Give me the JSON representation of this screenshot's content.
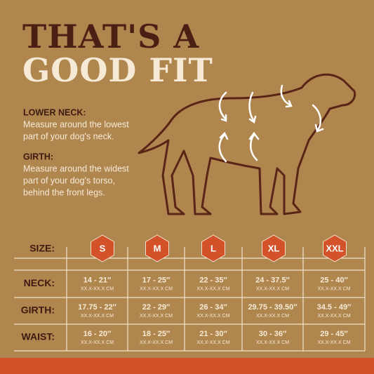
{
  "title": {
    "line1": "THAT'S A",
    "line2": "GOOD FIT"
  },
  "instructions": [
    {
      "label": "LOWER NECK:",
      "lines": [
        "Measure around the lowest",
        "part of your dog's neck."
      ]
    },
    {
      "label": "GIRTH:",
      "lines": [
        "Measure around the widest",
        "part of your dog's torso,",
        "behind the front legs."
      ]
    }
  ],
  "table": {
    "size_label": "SIZE:",
    "sizes": [
      "S",
      "M",
      "L",
      "XL",
      "XXL"
    ],
    "rows": [
      {
        "label": "NECK:",
        "values": [
          "14 - 21″",
          "17 - 25″",
          "22 - 35″",
          "24 - 37.5″",
          "25 - 40″"
        ],
        "subs": [
          "XX.X-XX.X CM",
          "XX.X-XX.X CM",
          "XX.X-XX.X CM",
          "XX.X-XX.X CM",
          "XX.X-XX.X CM"
        ]
      },
      {
        "label": "GIRTH:",
        "values": [
          "17.75 - 22″",
          "22 - 29″",
          "26 - 34″",
          "29.75 - 39.50″",
          "34.5 - 49″"
        ],
        "subs": [
          "XX.X-XX.X CM",
          "XX.X-XX.X CM",
          "XX.X-XX.X CM",
          "XX.X-XX.X CM",
          "XX.X-XX.X CM"
        ]
      },
      {
        "label": "WAIST:",
        "values": [
          "16 - 20″",
          "18 - 25″",
          "21 - 30″",
          "30 - 36″",
          "29 - 45″"
        ],
        "subs": [
          "XX.X-XX.X CM",
          "XX.X-XX.X CM",
          "XX.X-XX.X CM",
          "XX.X-XX.X CM",
          "XX.X-XX.X CM"
        ]
      }
    ]
  }
}
